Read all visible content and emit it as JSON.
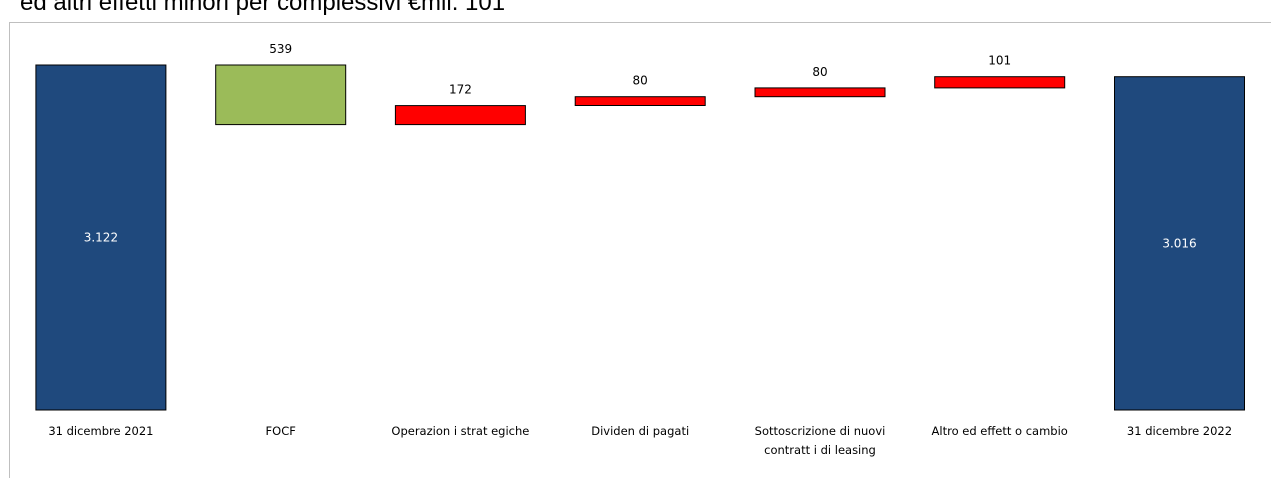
{
  "caption": "ed altri effetti minori per complessivi €mil. 101",
  "chart_data": {
    "type": "bar",
    "subtype": "waterfall",
    "categories": [
      [
        "31 dicembre 2021"
      ],
      [
        "FOCF"
      ],
      [
        "Operazion i strat egiche"
      ],
      [
        "Dividen di pagati"
      ],
      [
        "Sottoscrizione di nuovi",
        "contratt i di leasing"
      ],
      [
        "Altro ed effett o cambio"
      ],
      [
        "31 dicembre 2022"
      ]
    ],
    "values": [
      3122,
      -539,
      172,
      80,
      80,
      101,
      3016
    ],
    "bar_kind": [
      "total",
      "delta",
      "delta",
      "delta",
      "delta",
      "delta",
      "total"
    ],
    "data_labels": [
      "3.122",
      "539",
      "172",
      "80",
      "80",
      "101",
      "3.016"
    ],
    "colors": {
      "total": "#1f497d",
      "decrease_debt": "#9bbb59",
      "increase_debt": "#ff0000",
      "bar_outline": "#000000"
    },
    "ylim": [
      0,
      3200
    ],
    "grid": false,
    "legend": "none",
    "xlabel": "",
    "ylabel": ""
  }
}
